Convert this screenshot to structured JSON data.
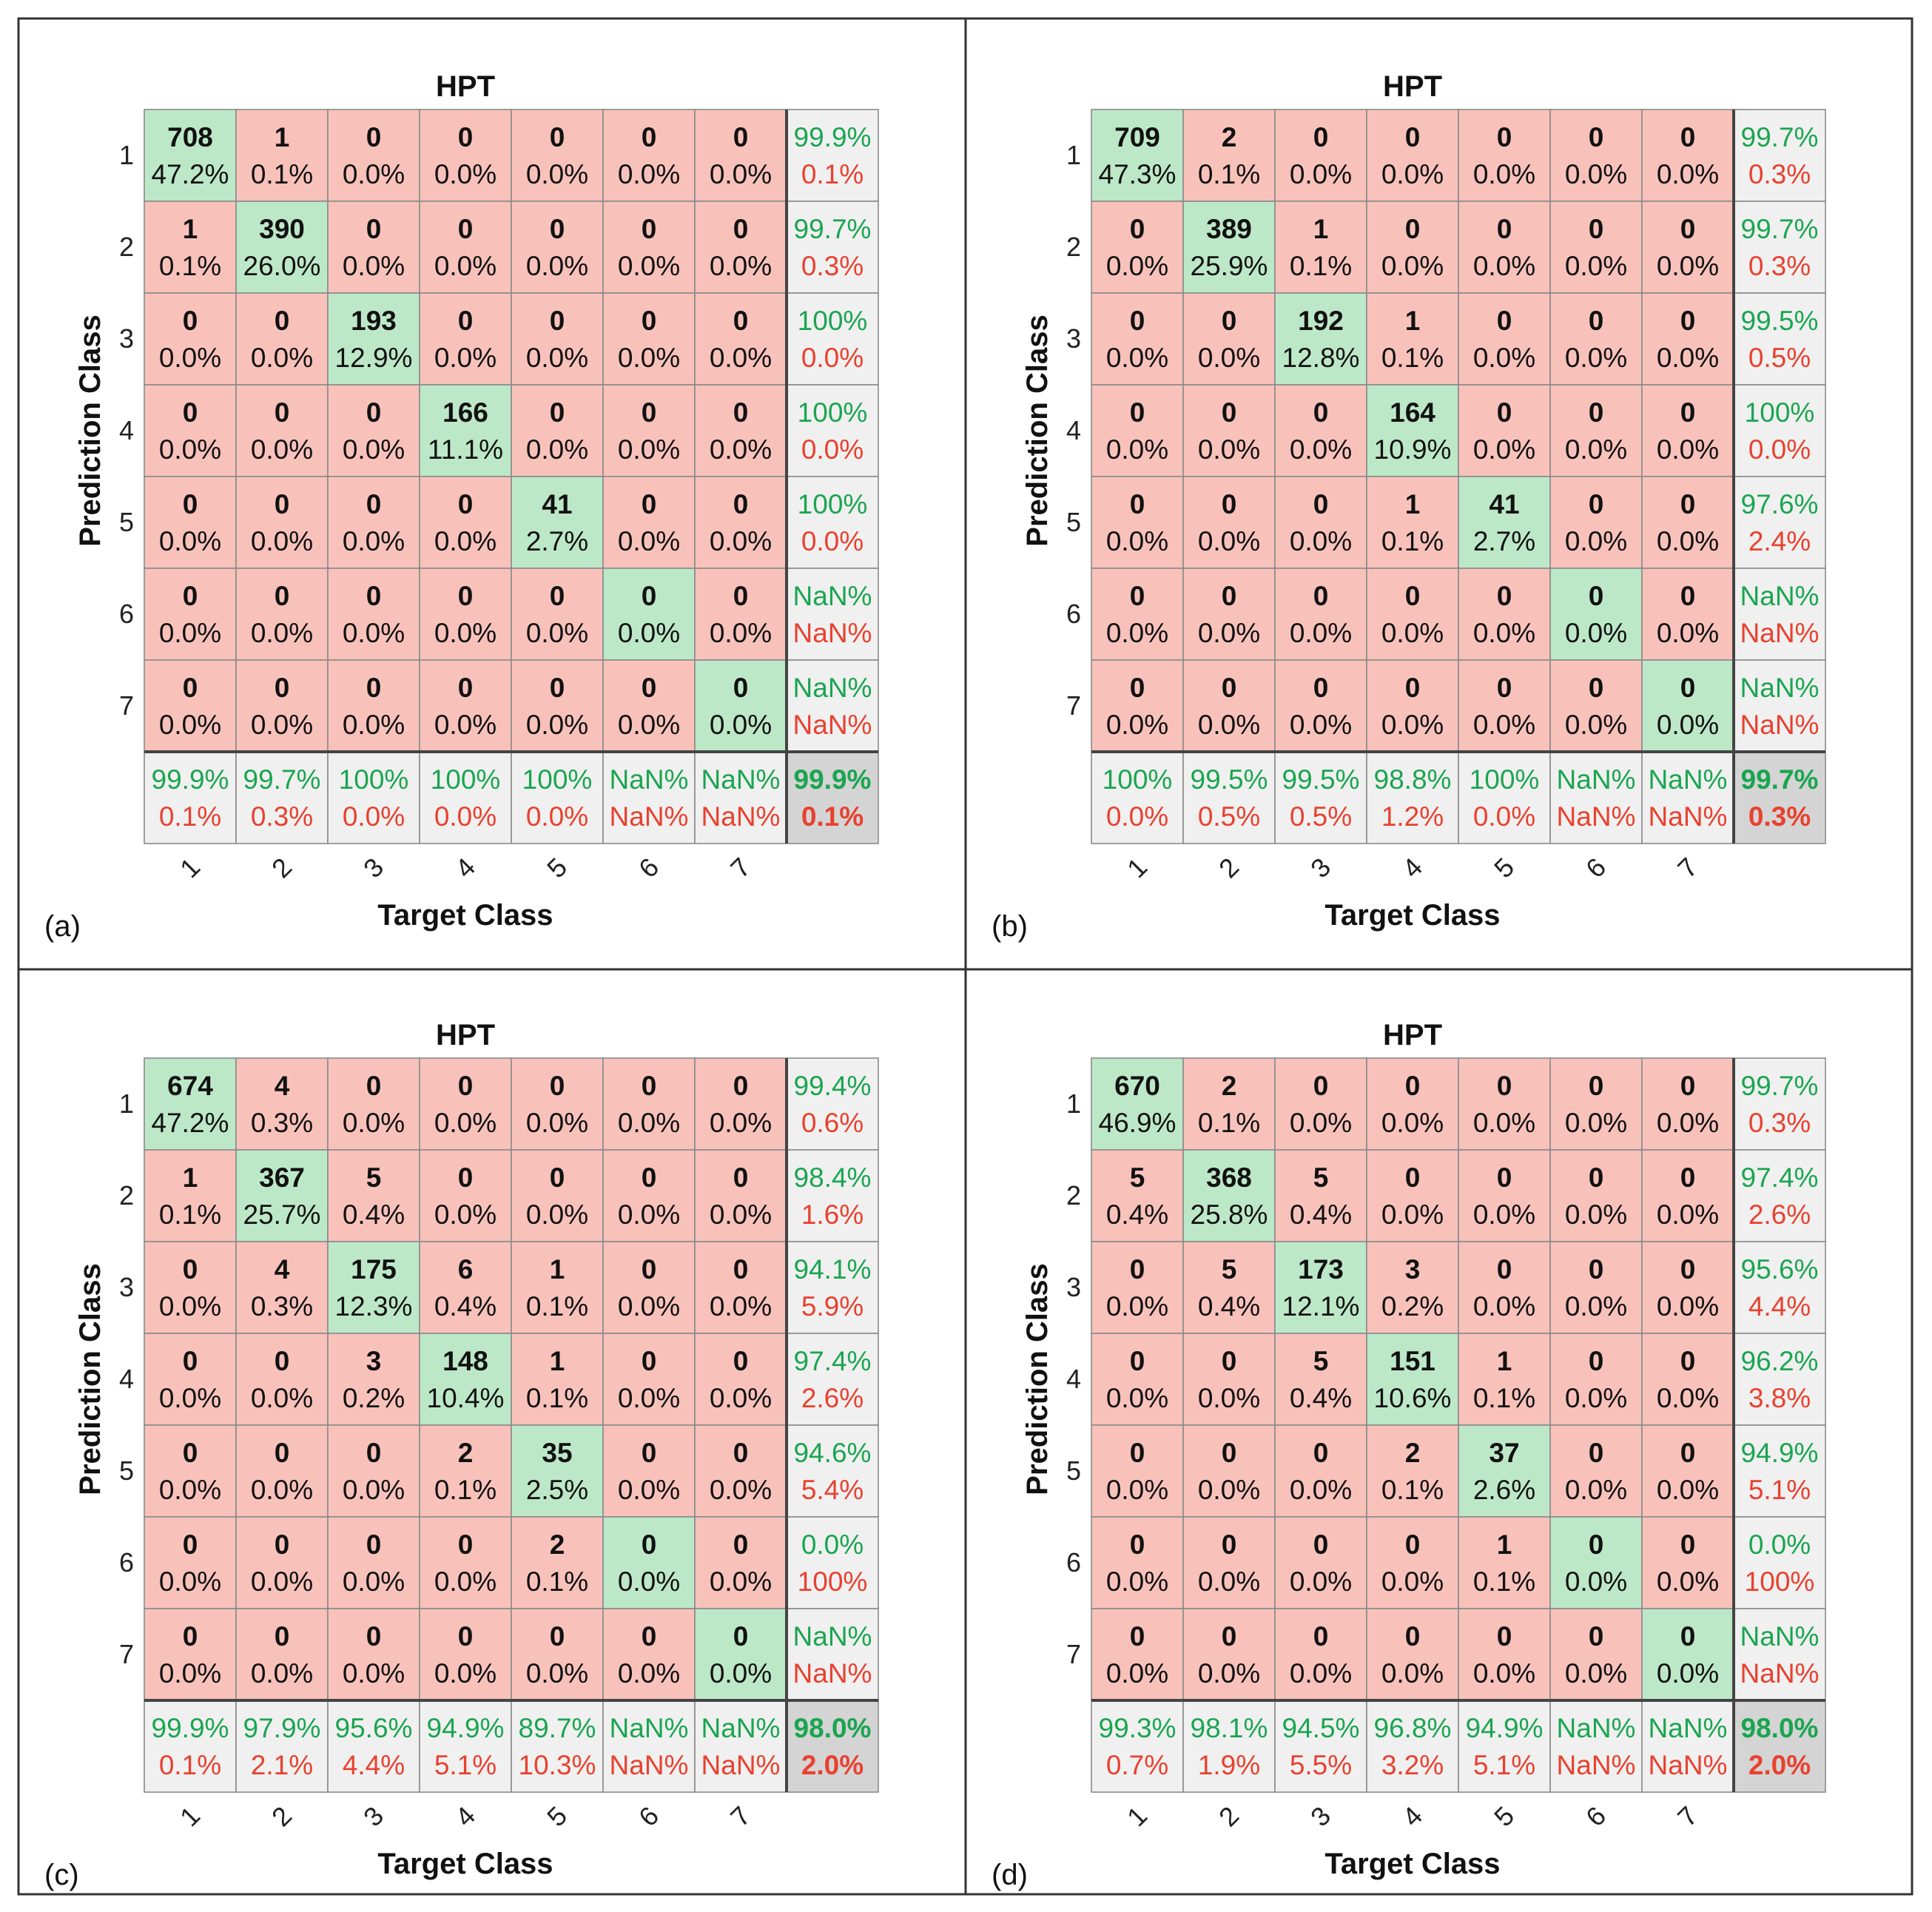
{
  "figure": {
    "colors": {
      "diag": "#bde8c8",
      "off": "#f8c2bb",
      "summary": "#f0f0f0",
      "total": "#d4d4d4",
      "green_text": "#1aa550",
      "red_text": "#e8412f"
    }
  },
  "chart_data": [
    {
      "type": "heatmap",
      "label": "(a)",
      "title": "HPT",
      "xlabel": "Target Class",
      "ylabel": "Prediction Class",
      "classes": [
        "1",
        "2",
        "3",
        "4",
        "5",
        "6",
        "7"
      ],
      "counts": [
        [
          708,
          1,
          0,
          0,
          0,
          0,
          0
        ],
        [
          1,
          390,
          0,
          0,
          0,
          0,
          0
        ],
        [
          0,
          0,
          193,
          0,
          0,
          0,
          0
        ],
        [
          0,
          0,
          0,
          166,
          0,
          0,
          0
        ],
        [
          0,
          0,
          0,
          0,
          41,
          0,
          0
        ],
        [
          0,
          0,
          0,
          0,
          0,
          0,
          0
        ],
        [
          0,
          0,
          0,
          0,
          0,
          0,
          0
        ]
      ],
      "percents": [
        [
          "47.2%",
          "0.1%",
          "0.0%",
          "0.0%",
          "0.0%",
          "0.0%",
          "0.0%"
        ],
        [
          "0.1%",
          "26.0%",
          "0.0%",
          "0.0%",
          "0.0%",
          "0.0%",
          "0.0%"
        ],
        [
          "0.0%",
          "0.0%",
          "12.9%",
          "0.0%",
          "0.0%",
          "0.0%",
          "0.0%"
        ],
        [
          "0.0%",
          "0.0%",
          "0.0%",
          "11.1%",
          "0.0%",
          "0.0%",
          "0.0%"
        ],
        [
          "0.0%",
          "0.0%",
          "0.0%",
          "0.0%",
          "2.7%",
          "0.0%",
          "0.0%"
        ],
        [
          "0.0%",
          "0.0%",
          "0.0%",
          "0.0%",
          "0.0%",
          "0.0%",
          "0.0%"
        ],
        [
          "0.0%",
          "0.0%",
          "0.0%",
          "0.0%",
          "0.0%",
          "0.0%",
          "0.0%"
        ]
      ],
      "row_summary": [
        [
          "99.9%",
          "0.1%"
        ],
        [
          "99.7%",
          "0.3%"
        ],
        [
          "100%",
          "0.0%"
        ],
        [
          "100%",
          "0.0%"
        ],
        [
          "100%",
          "0.0%"
        ],
        [
          "NaN%",
          "NaN%"
        ],
        [
          "NaN%",
          "NaN%"
        ]
      ],
      "col_summary": [
        [
          "99.9%",
          "0.1%"
        ],
        [
          "99.7%",
          "0.3%"
        ],
        [
          "100%",
          "0.0%"
        ],
        [
          "100%",
          "0.0%"
        ],
        [
          "100%",
          "0.0%"
        ],
        [
          "NaN%",
          "NaN%"
        ],
        [
          "NaN%",
          "NaN%"
        ]
      ],
      "overall": [
        "99.9%",
        "0.1%"
      ]
    },
    {
      "type": "heatmap",
      "label": "(b)",
      "title": "HPT",
      "xlabel": "Target Class",
      "ylabel": "Prediction Class",
      "classes": [
        "1",
        "2",
        "3",
        "4",
        "5",
        "6",
        "7"
      ],
      "counts": [
        [
          709,
          2,
          0,
          0,
          0,
          0,
          0
        ],
        [
          0,
          389,
          1,
          0,
          0,
          0,
          0
        ],
        [
          0,
          0,
          192,
          1,
          0,
          0,
          0
        ],
        [
          0,
          0,
          0,
          164,
          0,
          0,
          0
        ],
        [
          0,
          0,
          0,
          1,
          41,
          0,
          0
        ],
        [
          0,
          0,
          0,
          0,
          0,
          0,
          0
        ],
        [
          0,
          0,
          0,
          0,
          0,
          0,
          0
        ]
      ],
      "percents": [
        [
          "47.3%",
          "0.1%",
          "0.0%",
          "0.0%",
          "0.0%",
          "0.0%",
          "0.0%"
        ],
        [
          "0.0%",
          "25.9%",
          "0.1%",
          "0.0%",
          "0.0%",
          "0.0%",
          "0.0%"
        ],
        [
          "0.0%",
          "0.0%",
          "12.8%",
          "0.1%",
          "0.0%",
          "0.0%",
          "0.0%"
        ],
        [
          "0.0%",
          "0.0%",
          "0.0%",
          "10.9%",
          "0.0%",
          "0.0%",
          "0.0%"
        ],
        [
          "0.0%",
          "0.0%",
          "0.0%",
          "0.1%",
          "2.7%",
          "0.0%",
          "0.0%"
        ],
        [
          "0.0%",
          "0.0%",
          "0.0%",
          "0.0%",
          "0.0%",
          "0.0%",
          "0.0%"
        ],
        [
          "0.0%",
          "0.0%",
          "0.0%",
          "0.0%",
          "0.0%",
          "0.0%",
          "0.0%"
        ]
      ],
      "row_summary": [
        [
          "99.7%",
          "0.3%"
        ],
        [
          "99.7%",
          "0.3%"
        ],
        [
          "99.5%",
          "0.5%"
        ],
        [
          "100%",
          "0.0%"
        ],
        [
          "97.6%",
          "2.4%"
        ],
        [
          "NaN%",
          "NaN%"
        ],
        [
          "NaN%",
          "NaN%"
        ]
      ],
      "col_summary": [
        [
          "100%",
          "0.0%"
        ],
        [
          "99.5%",
          "0.5%"
        ],
        [
          "99.5%",
          "0.5%"
        ],
        [
          "98.8%",
          "1.2%"
        ],
        [
          "100%",
          "0.0%"
        ],
        [
          "NaN%",
          "NaN%"
        ],
        [
          "NaN%",
          "NaN%"
        ]
      ],
      "overall": [
        "99.7%",
        "0.3%"
      ]
    },
    {
      "type": "heatmap",
      "label": "(c)",
      "title": "HPT",
      "xlabel": "Target Class",
      "ylabel": "Prediction Class",
      "classes": [
        "1",
        "2",
        "3",
        "4",
        "5",
        "6",
        "7"
      ],
      "counts": [
        [
          674,
          4,
          0,
          0,
          0,
          0,
          0
        ],
        [
          1,
          367,
          5,
          0,
          0,
          0,
          0
        ],
        [
          0,
          4,
          175,
          6,
          1,
          0,
          0
        ],
        [
          0,
          0,
          3,
          148,
          1,
          0,
          0
        ],
        [
          0,
          0,
          0,
          2,
          35,
          0,
          0
        ],
        [
          0,
          0,
          0,
          0,
          2,
          0,
          0
        ],
        [
          0,
          0,
          0,
          0,
          0,
          0,
          0
        ]
      ],
      "percents": [
        [
          "47.2%",
          "0.3%",
          "0.0%",
          "0.0%",
          "0.0%",
          "0.0%",
          "0.0%"
        ],
        [
          "0.1%",
          "25.7%",
          "0.4%",
          "0.0%",
          "0.0%",
          "0.0%",
          "0.0%"
        ],
        [
          "0.0%",
          "0.3%",
          "12.3%",
          "0.4%",
          "0.1%",
          "0.0%",
          "0.0%"
        ],
        [
          "0.0%",
          "0.0%",
          "0.2%",
          "10.4%",
          "0.1%",
          "0.0%",
          "0.0%"
        ],
        [
          "0.0%",
          "0.0%",
          "0.0%",
          "0.1%",
          "2.5%",
          "0.0%",
          "0.0%"
        ],
        [
          "0.0%",
          "0.0%",
          "0.0%",
          "0.0%",
          "0.1%",
          "0.0%",
          "0.0%"
        ],
        [
          "0.0%",
          "0.0%",
          "0.0%",
          "0.0%",
          "0.0%",
          "0.0%",
          "0.0%"
        ]
      ],
      "row_summary": [
        [
          "99.4%",
          "0.6%"
        ],
        [
          "98.4%",
          "1.6%"
        ],
        [
          "94.1%",
          "5.9%"
        ],
        [
          "97.4%",
          "2.6%"
        ],
        [
          "94.6%",
          "5.4%"
        ],
        [
          "0.0%",
          "100%"
        ],
        [
          "NaN%",
          "NaN%"
        ]
      ],
      "col_summary": [
        [
          "99.9%",
          "0.1%"
        ],
        [
          "97.9%",
          "2.1%"
        ],
        [
          "95.6%",
          "4.4%"
        ],
        [
          "94.9%",
          "5.1%"
        ],
        [
          "89.7%",
          "10.3%"
        ],
        [
          "NaN%",
          "NaN%"
        ],
        [
          "NaN%",
          "NaN%"
        ]
      ],
      "overall": [
        "98.0%",
        "2.0%"
      ]
    },
    {
      "type": "heatmap",
      "label": "(d)",
      "title": "HPT",
      "xlabel": "Target Class",
      "ylabel": "Prediction Class",
      "classes": [
        "1",
        "2",
        "3",
        "4",
        "5",
        "6",
        "7"
      ],
      "counts": [
        [
          670,
          2,
          0,
          0,
          0,
          0,
          0
        ],
        [
          5,
          368,
          5,
          0,
          0,
          0,
          0
        ],
        [
          0,
          5,
          173,
          3,
          0,
          0,
          0
        ],
        [
          0,
          0,
          5,
          151,
          1,
          0,
          0
        ],
        [
          0,
          0,
          0,
          2,
          37,
          0,
          0
        ],
        [
          0,
          0,
          0,
          0,
          1,
          0,
          0
        ],
        [
          0,
          0,
          0,
          0,
          0,
          0,
          0
        ]
      ],
      "percents": [
        [
          "46.9%",
          "0.1%",
          "0.0%",
          "0.0%",
          "0.0%",
          "0.0%",
          "0.0%"
        ],
        [
          "0.4%",
          "25.8%",
          "0.4%",
          "0.0%",
          "0.0%",
          "0.0%",
          "0.0%"
        ],
        [
          "0.0%",
          "0.4%",
          "12.1%",
          "0.2%",
          "0.0%",
          "0.0%",
          "0.0%"
        ],
        [
          "0.0%",
          "0.0%",
          "0.4%",
          "10.6%",
          "0.1%",
          "0.0%",
          "0.0%"
        ],
        [
          "0.0%",
          "0.0%",
          "0.0%",
          "0.1%",
          "2.6%",
          "0.0%",
          "0.0%"
        ],
        [
          "0.0%",
          "0.0%",
          "0.0%",
          "0.0%",
          "0.1%",
          "0.0%",
          "0.0%"
        ],
        [
          "0.0%",
          "0.0%",
          "0.0%",
          "0.0%",
          "0.0%",
          "0.0%",
          "0.0%"
        ]
      ],
      "row_summary": [
        [
          "99.7%",
          "0.3%"
        ],
        [
          "97.4%",
          "2.6%"
        ],
        [
          "95.6%",
          "4.4%"
        ],
        [
          "96.2%",
          "3.8%"
        ],
        [
          "94.9%",
          "5.1%"
        ],
        [
          "0.0%",
          "100%"
        ],
        [
          "NaN%",
          "NaN%"
        ]
      ],
      "col_summary": [
        [
          "99.3%",
          "0.7%"
        ],
        [
          "98.1%",
          "1.9%"
        ],
        [
          "94.5%",
          "5.5%"
        ],
        [
          "96.8%",
          "3.2%"
        ],
        [
          "94.9%",
          "5.1%"
        ],
        [
          "NaN%",
          "NaN%"
        ],
        [
          "NaN%",
          "NaN%"
        ]
      ],
      "overall": [
        "98.0%",
        "2.0%"
      ]
    }
  ]
}
